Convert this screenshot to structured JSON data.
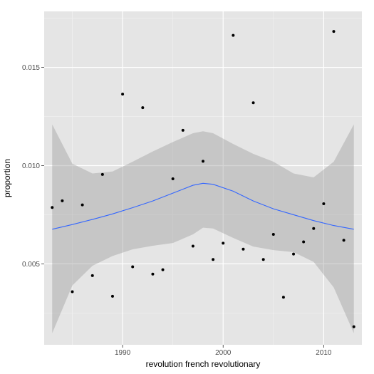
{
  "chart_data": {
    "type": "scatter",
    "xlabel": "revolution french revolutionary",
    "ylabel": "proportion",
    "xlim": [
      1982.2,
      2013.8
    ],
    "ylim": [
      0.00088,
      0.01785
    ],
    "x_ticks": [
      1990,
      2000,
      2010
    ],
    "x_tick_labels": [
      "1990",
      "2000",
      "2010"
    ],
    "y_ticks": [
      0.005,
      0.01,
      0.015
    ],
    "y_tick_labels": [
      "0.005",
      "0.010",
      "0.015"
    ],
    "grid": true,
    "points": [
      {
        "x": 1983,
        "y": 0.00787
      },
      {
        "x": 1984,
        "y": 0.00821
      },
      {
        "x": 1985,
        "y": 0.00358
      },
      {
        "x": 1986,
        "y": 0.008
      },
      {
        "x": 1987,
        "y": 0.0044
      },
      {
        "x": 1988,
        "y": 0.00955
      },
      {
        "x": 1989,
        "y": 0.00335
      },
      {
        "x": 1990,
        "y": 0.01364
      },
      {
        "x": 1991,
        "y": 0.00485
      },
      {
        "x": 1992,
        "y": 0.01295
      },
      {
        "x": 1993,
        "y": 0.00448
      },
      {
        "x": 1994,
        "y": 0.0047
      },
      {
        "x": 1995,
        "y": 0.00933
      },
      {
        "x": 1996,
        "y": 0.0118
      },
      {
        "x": 1997,
        "y": 0.0059
      },
      {
        "x": 1998,
        "y": 0.01022
      },
      {
        "x": 1999,
        "y": 0.00522
      },
      {
        "x": 2000,
        "y": 0.00605
      },
      {
        "x": 2001,
        "y": 0.01663
      },
      {
        "x": 2002,
        "y": 0.00575
      },
      {
        "x": 2003,
        "y": 0.0132
      },
      {
        "x": 2004,
        "y": 0.00522
      },
      {
        "x": 2005,
        "y": 0.0065
      },
      {
        "x": 2006,
        "y": 0.0033
      },
      {
        "x": 2007,
        "y": 0.0055
      },
      {
        "x": 2008,
        "y": 0.00612
      },
      {
        "x": 2009,
        "y": 0.0068
      },
      {
        "x": 2010,
        "y": 0.00806
      },
      {
        "x": 2011,
        "y": 0.01683
      },
      {
        "x": 2012,
        "y": 0.0062
      },
      {
        "x": 2013,
        "y": 0.0018
      }
    ],
    "smooth": {
      "x": [
        1983,
        1985,
        1987,
        1989,
        1991,
        1993,
        1995,
        1997,
        1998,
        1999,
        2001,
        2003,
        2005,
        2007,
        2009,
        2011,
        2013
      ],
      "y": [
        0.00676,
        0.007,
        0.00726,
        0.00754,
        0.00786,
        0.0082,
        0.0086,
        0.009,
        0.0091,
        0.00905,
        0.0087,
        0.0082,
        0.0078,
        0.0075,
        0.0072,
        0.00695,
        0.00676
      ],
      "ymin": [
        0.00147,
        0.0039,
        0.0049,
        0.0054,
        0.00574,
        0.00592,
        0.00606,
        0.0065,
        0.00684,
        0.0068,
        0.00632,
        0.00588,
        0.0057,
        0.0056,
        0.0051,
        0.0038,
        0.00147
      ],
      "ymax": [
        0.0121,
        0.0101,
        0.0096,
        0.0097,
        0.0102,
        0.01072,
        0.0112,
        0.01165,
        0.01175,
        0.01165,
        0.0111,
        0.0106,
        0.0102,
        0.0096,
        0.0094,
        0.0102,
        0.0121
      ]
    },
    "colors": {
      "panel": "#e5e5e5",
      "grid_major": "#ffffff",
      "grid_minor": "#f2f2f2",
      "point": "#000000",
      "line": "#3366ff",
      "ribbon": "#999999"
    }
  }
}
